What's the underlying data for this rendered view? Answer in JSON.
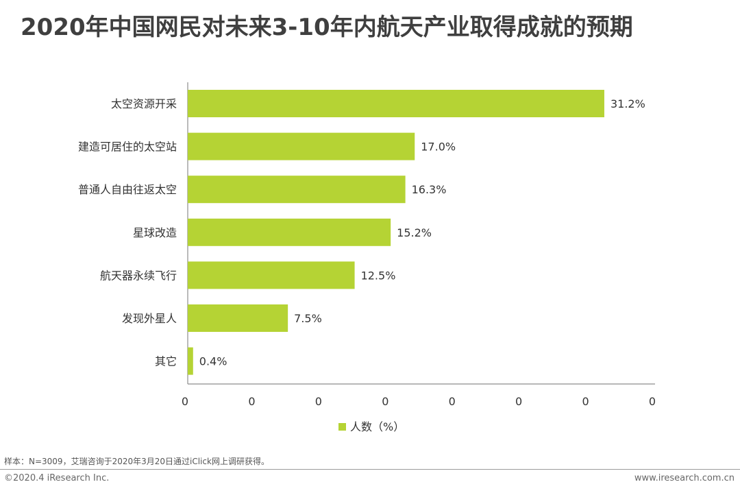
{
  "title": "2020年中国网民对未来3-10年内航天产业取得成就的预期",
  "chart_data": {
    "type": "bar",
    "orientation": "horizontal",
    "title": "2020年中国网民对未来3-10年内航天产业取得成就的预期",
    "categories": [
      "太空资源开采",
      "建造可居住的太空站",
      "普通人自由往返太空",
      "星球改造",
      "航天器永续飞行",
      "发现外星人",
      "其它"
    ],
    "series": [
      {
        "name": "人数（%）",
        "values": [
          31.2,
          17.0,
          16.3,
          15.2,
          12.5,
          7.5,
          0.4
        ],
        "labels": [
          "31.2%",
          "17.0%",
          "16.3%",
          "15.2%",
          "12.5%",
          "7.5%",
          "0.4%"
        ],
        "color": "#b5d334"
      }
    ],
    "xlim": [
      0,
      35
    ],
    "x_ticks": [
      "0",
      "0",
      "0",
      "0",
      "0",
      "0",
      "0",
      "0"
    ],
    "xlabel": "",
    "ylabel": "",
    "legend": "bottom-center",
    "grid": false
  },
  "note": "样本：N=3009，艾瑞咨询于2020年3月20日通过iClick网上调研获得。",
  "copyright": "©2020.4 iResearch Inc.",
  "website": "www.iresearch.com.cn"
}
